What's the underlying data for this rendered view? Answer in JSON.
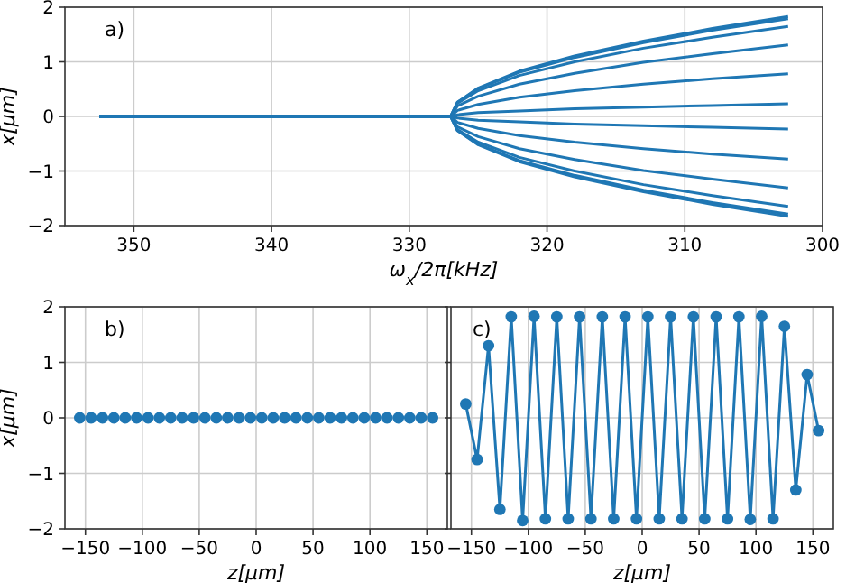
{
  "chart_data": [
    {
      "type": "line",
      "xlabel": "ω$_{x}$/2π[kHz]",
      "ylabel": "x[μm]",
      "annotations": [
        "a)"
      ],
      "xlim": [
        355,
        300
      ],
      "xticks": [
        350,
        340,
        330,
        320,
        310,
        300
      ],
      "ylim": [
        -2,
        2
      ],
      "yticks": [
        -2,
        -1,
        0,
        1,
        2
      ],
      "grid": true,
      "marker": "none",
      "line_style": "solid",
      "x": [
        352.5,
        327,
        326.5,
        325,
        322,
        318,
        313,
        308,
        302.5
      ],
      "series": [
        {
          "color": "#1f77b4",
          "values": [
            0,
            0,
            0.26,
            0.52,
            0.83,
            1.11,
            1.38,
            1.61,
            1.83
          ]
        },
        {
          "color": "#1f77b4",
          "values": [
            0,
            0,
            0.26,
            0.51,
            0.81,
            1.08,
            1.35,
            1.58,
            1.79
          ]
        },
        {
          "color": "#1f77b4",
          "values": [
            0,
            0,
            0.24,
            0.47,
            0.75,
            1.0,
            1.25,
            1.45,
            1.65
          ]
        },
        {
          "color": "#1f77b4",
          "values": [
            0,
            0,
            0.19,
            0.37,
            0.59,
            0.79,
            0.99,
            1.15,
            1.31
          ]
        },
        {
          "color": "#1f77b4",
          "values": [
            0,
            0,
            0.11,
            0.22,
            0.35,
            0.47,
            0.59,
            0.69,
            0.78
          ]
        },
        {
          "color": "#1f77b4",
          "values": [
            0,
            0,
            0.03,
            0.07,
            0.1,
            0.14,
            0.17,
            0.2,
            0.23
          ]
        },
        {
          "color": "#1f77b4",
          "values": [
            0,
            0,
            -0.03,
            -0.07,
            -0.1,
            -0.14,
            -0.17,
            -0.2,
            -0.23
          ]
        },
        {
          "color": "#1f77b4",
          "values": [
            0,
            0,
            -0.11,
            -0.22,
            -0.35,
            -0.47,
            -0.59,
            -0.69,
            -0.78
          ]
        },
        {
          "color": "#1f77b4",
          "values": [
            0,
            0,
            -0.19,
            -0.37,
            -0.59,
            -0.79,
            -0.99,
            -1.15,
            -1.31
          ]
        },
        {
          "color": "#1f77b4",
          "values": [
            0,
            0,
            -0.24,
            -0.47,
            -0.75,
            -1.0,
            -1.25,
            -1.45,
            -1.65
          ]
        },
        {
          "color": "#1f77b4",
          "values": [
            0,
            0,
            -0.26,
            -0.51,
            -0.81,
            -1.08,
            -1.35,
            -1.58,
            -1.79
          ]
        },
        {
          "color": "#1f77b4",
          "values": [
            0,
            0,
            -0.26,
            -0.52,
            -0.83,
            -1.11,
            -1.38,
            -1.61,
            -1.83
          ]
        }
      ]
    },
    {
      "type": "scatter",
      "xlabel": "z[μm]",
      "ylabel": "x[μm]",
      "annotations": [
        "b)"
      ],
      "xlim": [
        -168,
        168
      ],
      "xticks": [
        -150,
        -100,
        -50,
        0,
        50,
        100,
        150
      ],
      "ylim": [
        -2,
        2
      ],
      "yticks": [
        -2,
        -1,
        0,
        1,
        2
      ],
      "grid": true,
      "marker": "circle",
      "x": [
        -155,
        -145,
        -135,
        -125,
        -115,
        -105,
        -95,
        -85,
        -75,
        -65,
        -55,
        -45,
        -35,
        -25,
        -15,
        -5,
        5,
        15,
        25,
        35,
        45,
        55,
        65,
        75,
        85,
        95,
        105,
        115,
        125,
        135,
        145,
        155
      ],
      "series": [
        {
          "color": "#1f77b4",
          "values": [
            0,
            0,
            0,
            0,
            0,
            0,
            0,
            0,
            0,
            0,
            0,
            0,
            0,
            0,
            0,
            0,
            0,
            0,
            0,
            0,
            0,
            0,
            0,
            0,
            0,
            0,
            0,
            0,
            0,
            0,
            0,
            0
          ]
        }
      ]
    },
    {
      "type": "line",
      "xlabel": "z[μm]",
      "annotations": [
        "c)"
      ],
      "xlim": [
        -168,
        168
      ],
      "xticks": [
        -150,
        -100,
        -50,
        0,
        50,
        100,
        150
      ],
      "ylim": [
        -2,
        2
      ],
      "yticks": [
        -2,
        -1,
        0,
        1,
        2
      ],
      "tick_labels": "x",
      "grid": true,
      "marker": "circle",
      "line_style": "solid",
      "x": [
        -155,
        -145,
        -135,
        -125,
        -115,
        -105,
        -95,
        -85,
        -75,
        -65,
        -55,
        -45,
        -35,
        -25,
        -15,
        -5,
        5,
        15,
        25,
        35,
        45,
        55,
        65,
        75,
        85,
        95,
        105,
        115,
        125,
        135,
        145,
        155
      ],
      "series": [
        {
          "color": "#1f77b4",
          "values": [
            0.25,
            -0.75,
            1.3,
            -1.65,
            1.82,
            -1.85,
            1.83,
            -1.82,
            1.82,
            -1.82,
            1.82,
            -1.82,
            1.82,
            -1.82,
            1.82,
            -1.82,
            1.82,
            -1.82,
            1.82,
            -1.82,
            1.82,
            -1.82,
            1.82,
            -1.82,
            1.82,
            -1.83,
            1.83,
            -1.82,
            1.65,
            -1.3,
            0.78,
            -0.23
          ]
        }
      ]
    }
  ]
}
